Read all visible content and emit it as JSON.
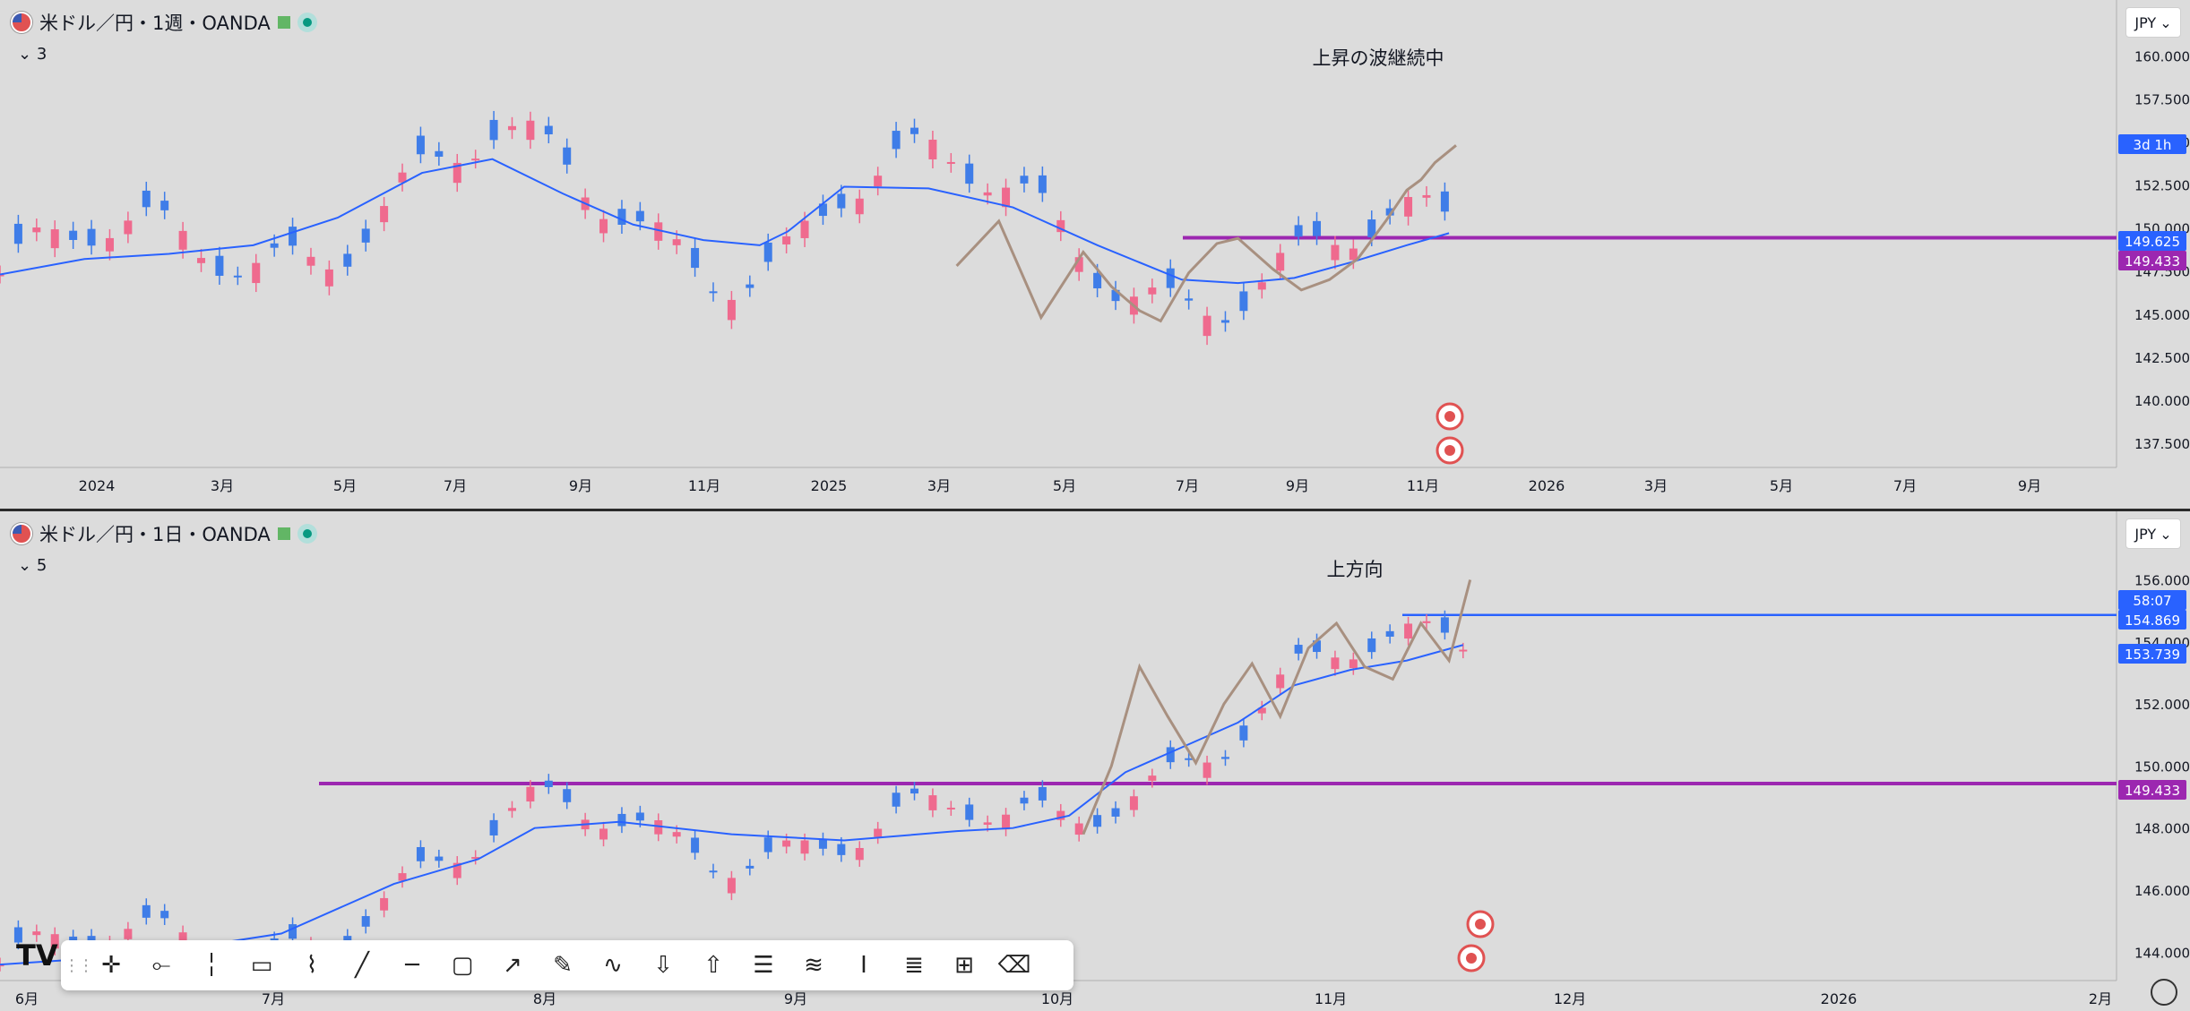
{
  "top": {
    "symbol_title": "米ドル／円・1週・OANDA",
    "collapse_count": "3",
    "currency": "JPY",
    "annotation": "上昇の波継続中",
    "price_axis": [
      "160.000",
      "157.500",
      "155.000",
      "152.500",
      "150.000",
      "147.500",
      "145.000",
      "142.500",
      "140.000",
      "137.500"
    ],
    "time_axis": [
      "2024",
      "3月",
      "5月",
      "7月",
      "9月",
      "11月",
      "2025",
      "3月",
      "5月",
      "7月",
      "9月",
      "11月",
      "2026",
      "3月",
      "5月",
      "7月",
      "9月"
    ],
    "badges": [
      {
        "text": "3d 1h",
        "color": "#2962ff"
      },
      {
        "text": "149.625",
        "color": "#2962ff"
      },
      {
        "text": "149.433",
        "color": "#9c27b0"
      }
    ],
    "chart_data": {
      "type": "line",
      "ylim": [
        136.2,
        162.2
      ],
      "hline_level": 149.433,
      "ma_x": [
        0,
        60,
        120,
        180,
        240,
        300,
        350,
        400,
        450,
        500,
        540,
        560,
        600,
        660,
        720,
        780,
        840,
        880,
        920,
        960,
        1000,
        1030
      ],
      "ma_y": [
        147.3,
        148.2,
        148.5,
        149.0,
        150.6,
        153.2,
        154.0,
        152.0,
        150.2,
        149.3,
        149.0,
        149.8,
        152.4,
        152.3,
        151.2,
        149.0,
        147.0,
        146.8,
        147.1,
        148.0,
        149.0,
        149.7
      ],
      "wave_x": [
        680,
        710,
        740,
        770,
        790,
        810,
        825,
        845,
        865,
        880,
        905,
        925,
        945,
        965,
        985,
        1000,
        1010,
        1020,
        1035
      ],
      "wave_y": [
        147.8,
        150.4,
        144.8,
        148.6,
        146.6,
        145.2,
        144.6,
        147.4,
        149.1,
        149.4,
        147.6,
        146.4,
        147.0,
        148.2,
        150.4,
        152.2,
        152.8,
        153.8,
        154.8
      ]
    }
  },
  "bottom": {
    "symbol_title": "米ドル／円・1日・OANDA",
    "collapse_count": "5",
    "currency": "JPY",
    "annotation": "上方向",
    "price_axis": [
      "156.000",
      "154.000",
      "152.000",
      "150.000",
      "148.000",
      "146.000",
      "144.000"
    ],
    "time_axis": [
      "6月",
      "7月",
      "8月",
      "9月",
      "10月",
      "11月",
      "12月",
      "2026",
      "2月"
    ],
    "badges": [
      {
        "text": "58:07",
        "color": "#2962ff"
      },
      {
        "text": "154.869",
        "color": "#2962ff"
      },
      {
        "text": "153.739",
        "color": "#2962ff"
      },
      {
        "text": "149.433",
        "color": "#9c27b0"
      }
    ],
    "chart_data": {
      "type": "line",
      "ylim": [
        143.2,
        157.4
      ],
      "hline_purple": 149.433,
      "hline_blue": 154.869,
      "ma_x": [
        0,
        100,
        200,
        280,
        340,
        380,
        440,
        520,
        600,
        680,
        720,
        760,
        800,
        840,
        880,
        920,
        960,
        1000,
        1040
      ],
      "ma_y": [
        143.6,
        143.9,
        144.6,
        146.2,
        147.0,
        148.0,
        148.2,
        147.8,
        147.6,
        147.9,
        148.0,
        148.4,
        149.8,
        150.6,
        151.4,
        152.6,
        153.1,
        153.4,
        153.9
      ],
      "wave_x": [
        770,
        790,
        810,
        830,
        850,
        870,
        890,
        910,
        930,
        950,
        970,
        990,
        1010,
        1030,
        1045
      ],
      "wave_y": [
        147.8,
        150.0,
        153.2,
        151.6,
        150.1,
        152.0,
        153.3,
        151.6,
        153.8,
        154.6,
        153.2,
        152.8,
        154.6,
        153.4,
        156.0
      ]
    }
  },
  "toolbar": {
    "logo": "TV",
    "tools": [
      "crosshair-icon",
      "horizontal-ray-icon",
      "vertical-line-icon",
      "callout-icon",
      "path-icon",
      "trend-line-icon",
      "horizontal-line-icon",
      "rectangle-icon",
      "arrow-icon",
      "brush-icon",
      "curve-icon",
      "arrow-down-icon",
      "arrow-up-icon",
      "parallel-channel-icon",
      "fib-icon",
      "text-cursor-icon",
      "regression-icon",
      "date-range-icon",
      "eraser-icon"
    ]
  }
}
